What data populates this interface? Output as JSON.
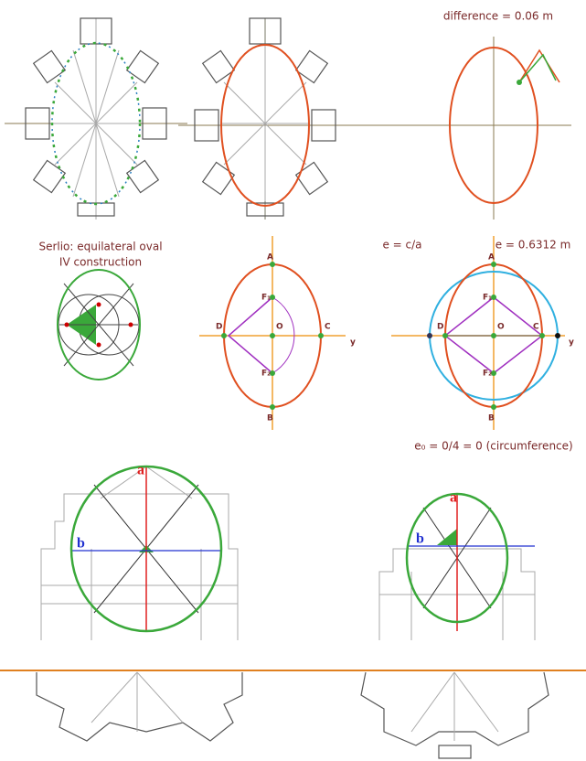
{
  "annotations": {
    "difference": "difference  = 0.06 m",
    "serlio_title": [
      "Serlio: equilateral oval",
      "IV construction"
    ],
    "eccentricity_formula": "e  = c/a",
    "eccentricity_value": "e = 0.6312 m",
    "circumference_note": "e₀ = 0/4 = 0  (circumference)"
  },
  "panels": [
    {
      "A": "A",
      "B": "B",
      "C": "C",
      "D": "D",
      "O": "O",
      "F1": "F₁",
      "F2": "F₂",
      "y": "y"
    },
    {
      "A": "A",
      "B": "B",
      "C": "C",
      "D": "D",
      "O": "O",
      "F1": "F₁",
      "F2": "F₂",
      "y": "y"
    }
  ],
  "sections": [
    {
      "a": "a",
      "b": "b"
    },
    {
      "a": "a",
      "b": "b"
    }
  ]
}
